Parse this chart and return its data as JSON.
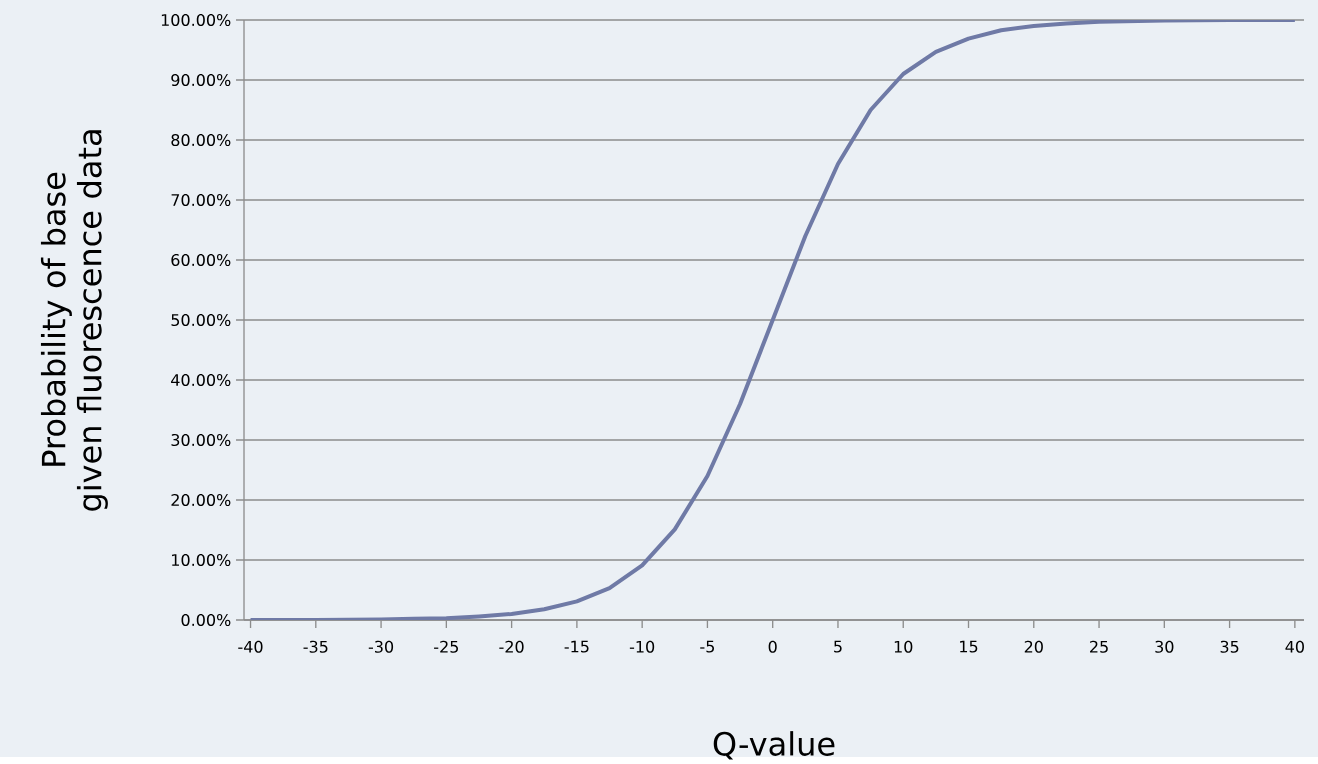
{
  "chart_data": {
    "type": "line",
    "xlabel": "Q-value",
    "ylabel": "Probability of base given fluorescence  data",
    "x": [
      -40,
      -35,
      -30,
      -27.5,
      -25,
      -22.5,
      -20,
      -17.5,
      -15,
      -12.5,
      -10,
      -7.5,
      -5,
      -2.5,
      0,
      2.5,
      5,
      7.5,
      10,
      12.5,
      15,
      17.5,
      20,
      22.5,
      25,
      30,
      35,
      40
    ],
    "series": [
      {
        "color": "#6f7aa6",
        "values": [
          0.0,
          0.0,
          0.1,
          0.2,
          0.3,
          0.6,
          1.0,
          1.8,
          3.1,
          5.3,
          9.1,
          15.1,
          24.0,
          36.0,
          50.0,
          64.0,
          76.0,
          85.0,
          91.0,
          94.7,
          96.9,
          98.3,
          99.0,
          99.4,
          99.7,
          99.9,
          100.0,
          100.0
        ]
      }
    ],
    "xlim": [
      -40.5,
      40.7
    ],
    "ylim": [
      0,
      100
    ],
    "xticks": [
      -40,
      -35,
      -30,
      -25,
      -20,
      -15,
      -10,
      -5,
      0,
      5,
      10,
      15,
      20,
      25,
      30,
      35,
      40
    ],
    "yticks": [
      {
        "value": 0,
        "label": "0.00%"
      },
      {
        "value": 10,
        "label": "10.00%"
      },
      {
        "value": 20,
        "label": "20.00%"
      },
      {
        "value": 30,
        "label": "30.00%"
      },
      {
        "value": 40,
        "label": "40.00%"
      },
      {
        "value": 50,
        "label": "50.00%"
      },
      {
        "value": 60,
        "label": "60.00%"
      },
      {
        "value": 70,
        "label": "70.00%"
      },
      {
        "value": 80,
        "label": "80.00%"
      },
      {
        "value": 90,
        "label": "90.00%"
      },
      {
        "value": 100,
        "label": "100.00%"
      }
    ],
    "grid": "y",
    "legend": false,
    "marker": "none",
    "line_style": "solid"
  }
}
